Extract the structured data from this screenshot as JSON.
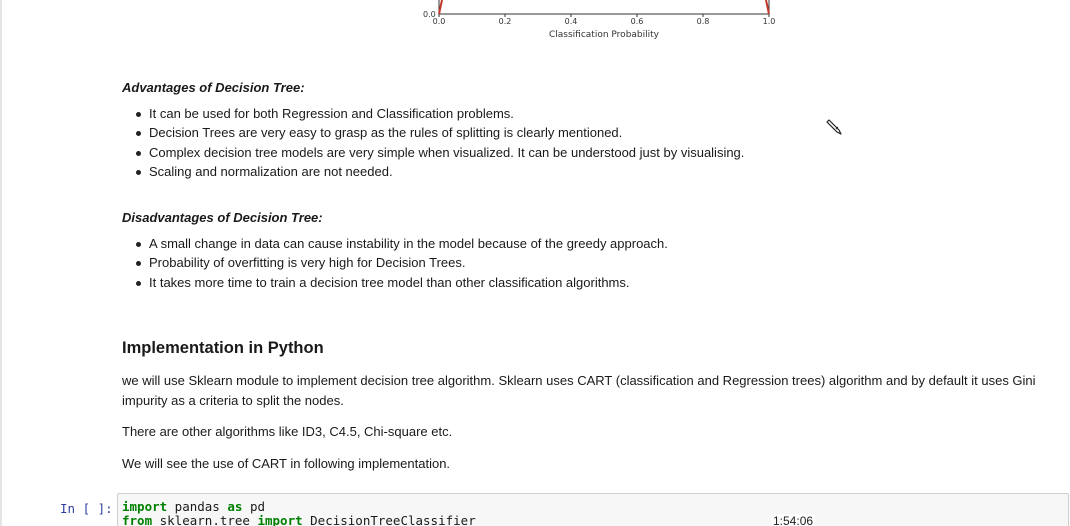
{
  "chart_fragment": {
    "y_tick_visible": "0.0",
    "x_ticks": [
      "0.0",
      "0.2",
      "0.4",
      "0.6",
      "0.8",
      "1.0"
    ],
    "xlabel": "Classification Probability",
    "line_color": "#c0392b"
  },
  "advantages": {
    "heading": "Advantages of Decision Tree:",
    "items": [
      "It can be used for both Regression and Classification problems.",
      "Decision Trees are very easy to grasp as the rules of splitting is clearly mentioned.",
      "Complex decision tree models are very simple when visualized. It can be understood just by visualising.",
      "Scaling and normalization are not needed."
    ]
  },
  "disadvantages": {
    "heading": "Disadvantages of Decision Tree:",
    "items": [
      "A small change in data can cause instability in the model because of the greedy approach.",
      "Probability of overfitting is very high for Decision Trees.",
      "It takes more time to train a decision tree model than other classification algorithms."
    ]
  },
  "implementation": {
    "heading": "Implementation in Python",
    "paragraphs": [
      "we will use Sklearn module to implement decision tree algorithm. Sklearn uses CART (classification and Regression trees) algorithm and by default it uses Gini impurity as a criteria to split the nodes.",
      "There are other algorithms like ID3, C4.5, Chi-square etc.",
      "We will see the use of CART in following implementation."
    ]
  },
  "code_cell": {
    "prompt": "In [ ]:",
    "line1": {
      "kw1": "import",
      "mod": " pandas ",
      "kw2": "as",
      "alias": " pd"
    },
    "line2": {
      "kw1": "from",
      "mod": " sklearn.tree ",
      "kw2": "import",
      "name": " DecisionTreeClassifier"
    }
  },
  "video_timestamp": "1:54:06",
  "icons": {
    "cursor": "pencil-cursor-icon"
  }
}
